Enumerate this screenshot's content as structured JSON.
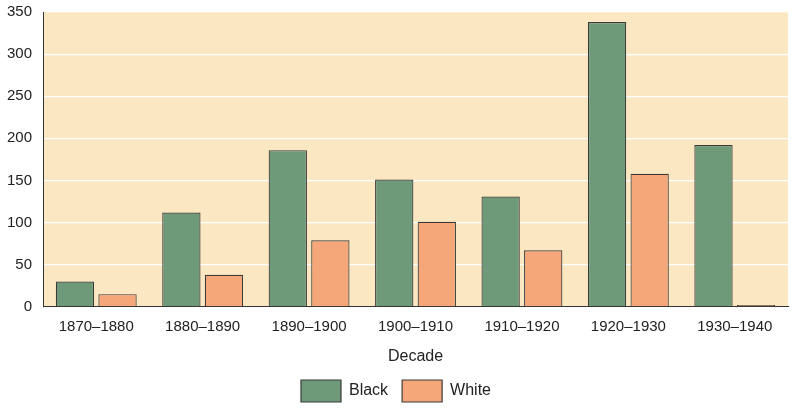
{
  "chart_data": {
    "type": "bar",
    "x_label": "Decade",
    "categories": [
      "1870–1880",
      "1880–1890",
      "1890–1900",
      "1900–1910",
      "1910–1920",
      "1920–1930",
      "1930–1940"
    ],
    "series": [
      {
        "name": "Black",
        "color": "#6e9a79",
        "values": [
          30,
          112,
          186,
          151,
          131,
          338,
          192
        ]
      },
      {
        "name": "White",
        "color": "#f5a77a",
        "values": [
          15,
          38,
          79,
          101,
          67,
          158,
          2
        ]
      }
    ],
    "ylim": [
      0,
      350
    ],
    "yticks": [
      0,
      50,
      100,
      150,
      200,
      250,
      300,
      350
    ],
    "grid": true,
    "legend": "bottom"
  }
}
